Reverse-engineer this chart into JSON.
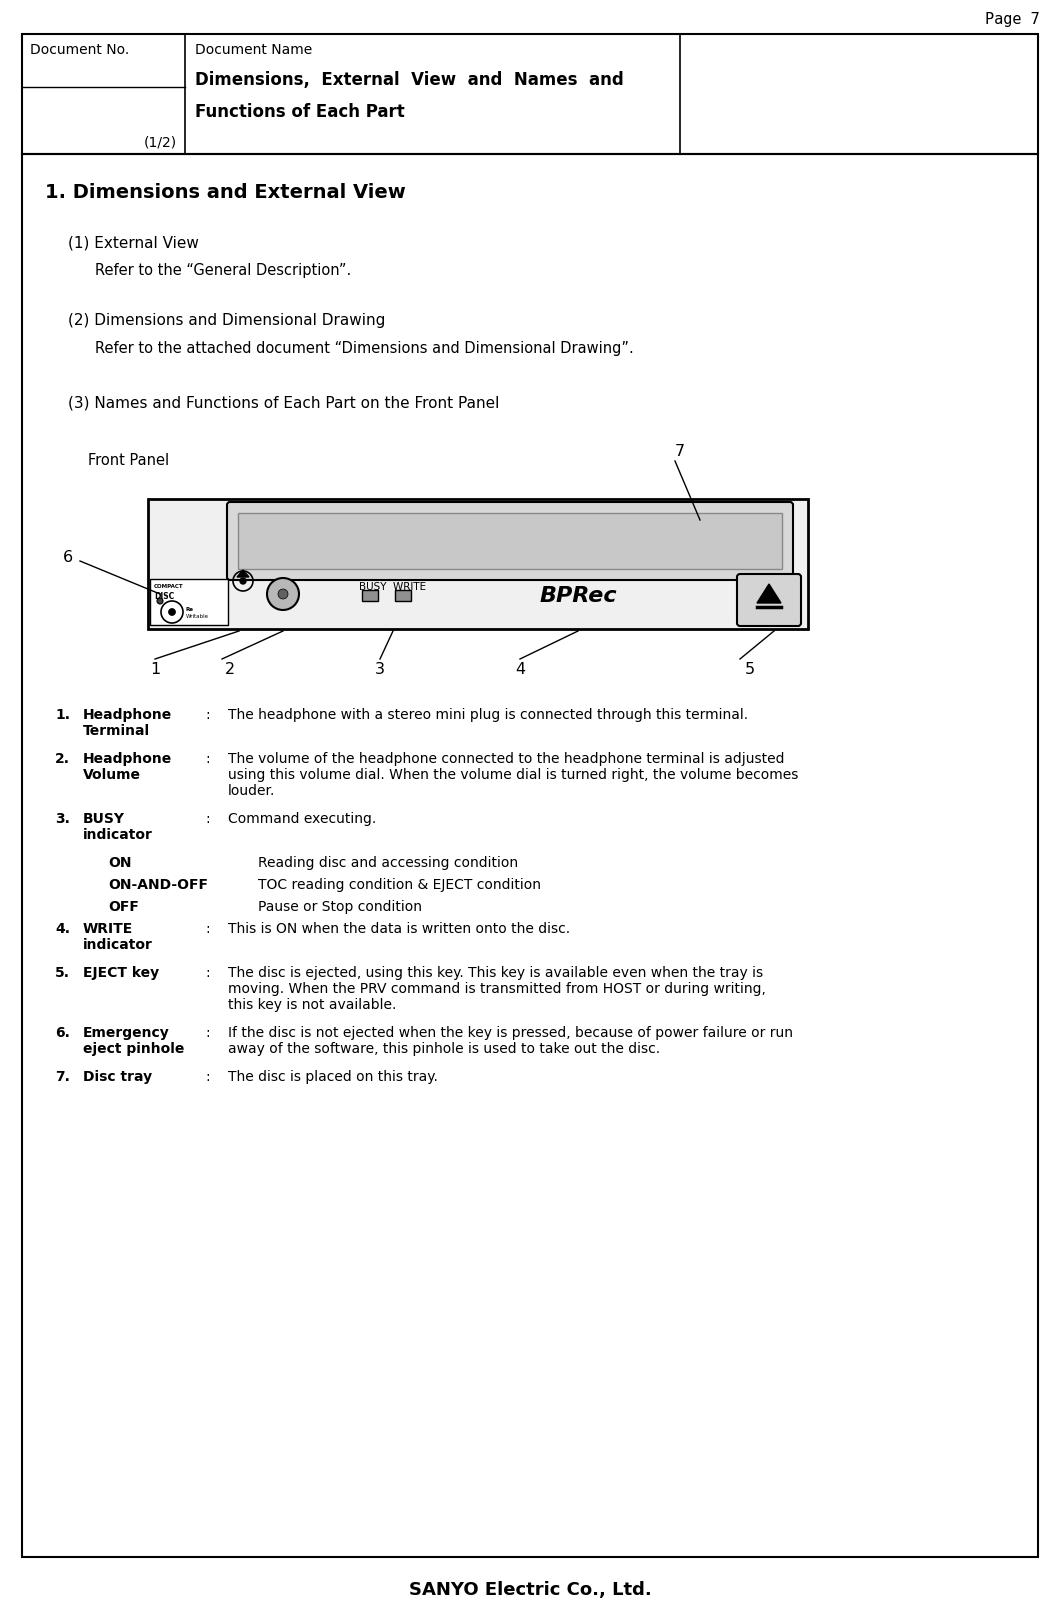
{
  "page_label": "Page 7",
  "header": {
    "doc_no_label": "Document No.",
    "doc_name_label": "Document Name",
    "doc_name_value1": "Dimensions,  External  View  and  Names  and",
    "doc_name_value2": "Functions of Each Part",
    "page_num": "(1/2)"
  },
  "section_title": "1. Dimensions and External View",
  "subsections": [
    {
      "title": "(1) External View",
      "body": "Refer to the “General Description”."
    },
    {
      "title": "(2) Dimensions and Dimensional Drawing",
      "body": "Refer to the attached document “Dimensions and Dimensional Drawing”."
    },
    {
      "title": "(3) Names and Functions of Each Part on the Front Panel"
    }
  ],
  "front_panel_label": "Front Panel",
  "items": [
    {
      "number": "1.",
      "name": "Headphone\nTerminal",
      "colon": ":",
      "desc": "The headphone with a stereo mini plug is connected through this terminal.",
      "sub": false
    },
    {
      "number": "2.",
      "name": "Headphone\nVolume",
      "colon": ":",
      "desc": "The volume of the headphone connected to the headphone terminal is adjusted\nusing this volume dial. When the volume dial is turned right, the volume becomes\nlouder.",
      "sub": false
    },
    {
      "number": "3.",
      "name": "BUSY\nindicator",
      "colon": ":",
      "desc": "Command executing.",
      "sub": false
    },
    {
      "number": "",
      "name": "ON",
      "colon": "",
      "desc": "Reading disc and accessing condition",
      "sub": true
    },
    {
      "number": "",
      "name": "ON-AND-OFF",
      "colon": "",
      "desc": "TOC reading condition & EJECT condition",
      "sub": true
    },
    {
      "number": "",
      "name": "OFF",
      "colon": "",
      "desc": "Pause or Stop condition",
      "sub": true
    },
    {
      "number": "4.",
      "name": "WRITE\nindicator",
      "colon": ":",
      "desc": "This is ON when the data is written onto the disc.",
      "sub": false
    },
    {
      "number": "5.",
      "name": "EJECT key",
      "colon": ":",
      "desc": "The disc is ejected, using this key. This key is available even when the tray is\nmoving. When the PRV command is transmitted from HOST or during writing,\nthis key is not available.",
      "sub": false
    },
    {
      "number": "6.",
      "name": "Emergency\neject pinhole",
      "colon": ":",
      "desc": "If the disc is not ejected when the key is pressed, because of power failure or run\naway of the software, this pinhole is used to take out the disc.",
      "sub": false
    },
    {
      "number": "7.",
      "name": "Disc tray",
      "colon": ":",
      "desc": "The disc is placed on this tray.",
      "sub": false
    }
  ],
  "footer": "SANYO Electric Co., Ltd.",
  "bg_color": "#ffffff"
}
